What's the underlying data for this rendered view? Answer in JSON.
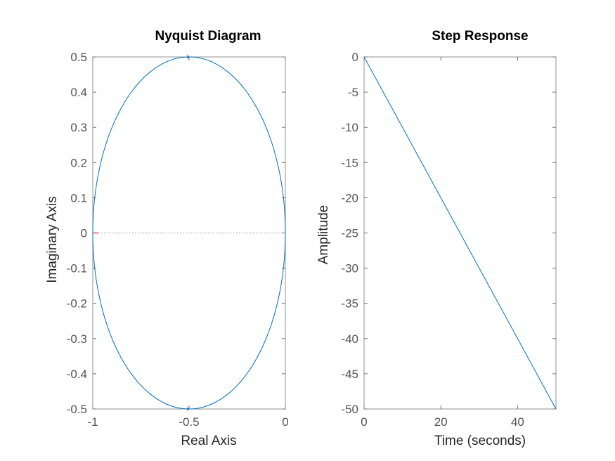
{
  "colors": {
    "series": "#0072BD",
    "critical_point": "#D62728",
    "axis": "#909090",
    "reference_line": "#8c8c8c"
  },
  "chart_data": [
    {
      "type": "line",
      "title": "Nyquist Diagram",
      "xlabel": "Real Axis",
      "ylabel": "Imaginary Axis",
      "xlim": [
        -1,
        0
      ],
      "ylim": [
        -0.5,
        0.5
      ],
      "xticks": [
        -1,
        -0.5,
        0
      ],
      "xtick_labels": [
        "-1",
        "-0.5",
        "0"
      ],
      "yticks": [
        0.5,
        0.4,
        0.3,
        0.2,
        0.1,
        0,
        -0.1,
        -0.2,
        -0.3,
        -0.4,
        -0.5
      ],
      "ytick_labels": [
        "0.5",
        "0.4",
        "0.3",
        "0.2",
        "0.1",
        "0",
        "-0.1",
        "-0.2",
        "-0.3",
        "-0.4",
        "-0.5"
      ],
      "series": [
        {
          "curve": "circle",
          "center": [
            -0.5,
            0
          ],
          "radius": 0.5
        }
      ],
      "critical_point": [
        -1,
        0
      ],
      "zero_imaginary_reference_line": true,
      "direction_arrows_at": [
        [
          -0.5,
          0.5
        ],
        [
          -0.5,
          -0.5
        ]
      ],
      "grid": false
    },
    {
      "type": "line",
      "title": "Step Response",
      "xlabel": "Time (seconds)",
      "ylabel": "Amplitude",
      "xlim": [
        0,
        50
      ],
      "ylim": [
        -50,
        0
      ],
      "xticks": [
        0,
        20,
        40
      ],
      "xtick_labels": [
        "0",
        "20",
        "40"
      ],
      "yticks": [
        0,
        -5,
        -10,
        -15,
        -20,
        -25,
        -30,
        -35,
        -40,
        -45,
        -50
      ],
      "ytick_labels": [
        "0",
        "-5",
        "-10",
        "-15",
        "-20",
        "-25",
        "-30",
        "-35",
        "-40",
        "-45",
        "-50"
      ],
      "series": [
        {
          "x": [
            0,
            50
          ],
          "y": [
            0,
            -50
          ]
        }
      ],
      "grid": false
    }
  ]
}
